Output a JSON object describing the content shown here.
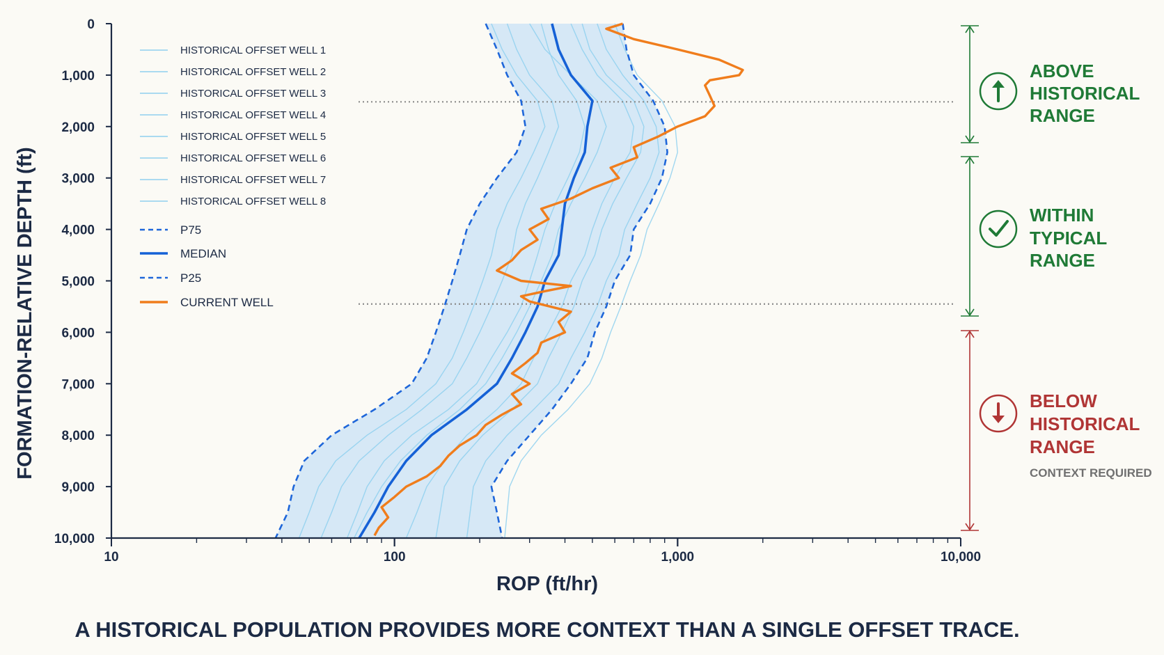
{
  "chart_data": {
    "type": "line",
    "orientation": "depth-vertical",
    "x_scale": "log",
    "xlim": [
      10,
      10000
    ],
    "ylim": [
      0,
      10000
    ],
    "y_inverted": true,
    "xlabel": "ROP (ft/hr)",
    "ylabel": "FORMATION-RELATIVE DEPTH (ft)",
    "x_ticks": [
      10,
      100,
      1000,
      10000
    ],
    "x_tick_labels": [
      "10",
      "100",
      "1,000",
      "10,000"
    ],
    "y_ticks": [
      0,
      1000,
      2000,
      3000,
      4000,
      5000,
      6000,
      7000,
      8000,
      9000,
      10000
    ],
    "y_tick_labels": [
      "0",
      "1,000",
      "2,000",
      "3,000",
      "4,000",
      "5,000",
      "6,000",
      "7,000",
      "8,000",
      "9,000",
      "10,000"
    ],
    "depths": [
      0,
      500,
      1000,
      1500,
      2000,
      2500,
      3000,
      3500,
      4000,
      4500,
      5000,
      5500,
      6000,
      6500,
      7000,
      7500,
      8000,
      8500,
      9000,
      9500,
      10000
    ],
    "p75": [
      640,
      660,
      700,
      820,
      900,
      920,
      880,
      800,
      700,
      680,
      600,
      560,
      510,
      480,
      420,
      360,
      300,
      250,
      220,
      230,
      240
    ],
    "median": [
      360,
      380,
      420,
      500,
      480,
      470,
      430,
      400,
      390,
      380,
      340,
      320,
      290,
      260,
      230,
      180,
      135,
      110,
      95,
      85,
      75
    ],
    "p25": [
      210,
      230,
      250,
      280,
      290,
      270,
      230,
      200,
      180,
      170,
      160,
      150,
      140,
      130,
      115,
      85,
      60,
      48,
      44,
      42,
      38
    ],
    "historical_wells": [
      {
        "name": "HISTORICAL OFFSET WELL 1",
        "values": [
          300,
          340,
          420,
          520,
          560,
          520,
          470,
          420,
          380,
          360,
          330,
          300,
          270,
          240,
          210,
          170,
          130,
          105,
          90,
          80,
          72
        ]
      },
      {
        "name": "HISTORICAL OFFSET WELL 2",
        "values": [
          420,
          460,
          520,
          640,
          700,
          680,
          600,
          540,
          500,
          470,
          420,
          390,
          350,
          310,
          280,
          230,
          180,
          150,
          130,
          120,
          110
        ]
      },
      {
        "name": "HISTORICAL OFFSET WELL 3",
        "values": [
          250,
          270,
          300,
          360,
          380,
          350,
          320,
          290,
          270,
          260,
          240,
          220,
          200,
          180,
          160,
          125,
          95,
          75,
          65,
          60,
          55
        ]
      },
      {
        "name": "HISTORICAL OFFSET WELL 4",
        "values": [
          520,
          560,
          640,
          760,
          840,
          860,
          800,
          720,
          650,
          620,
          560,
          520,
          470,
          420,
          380,
          310,
          250,
          210,
          190,
          185,
          180
        ]
      },
      {
        "name": "HISTORICAL OFFSET WELL 5",
        "values": [
          330,
          350,
          380,
          440,
          470,
          450,
          410,
          370,
          340,
          320,
          300,
          280,
          250,
          220,
          195,
          155,
          115,
          92,
          80,
          74,
          68
        ]
      },
      {
        "name": "HISTORICAL OFFSET WELL 6",
        "values": [
          600,
          650,
          720,
          880,
          980,
          1000,
          940,
          860,
          780,
          740,
          680,
          630,
          580,
          540,
          490,
          410,
          330,
          280,
          255,
          250,
          245
        ]
      },
      {
        "name": "HISTORICAL OFFSET WELL 7",
        "values": [
          220,
          240,
          270,
          320,
          340,
          310,
          280,
          250,
          230,
          220,
          205,
          190,
          175,
          160,
          140,
          110,
          80,
          62,
          54,
          50,
          46
        ]
      },
      {
        "name": "HISTORICAL OFFSET WELL 8",
        "values": [
          460,
          490,
          560,
          700,
          760,
          740,
          660,
          590,
          540,
          510,
          460,
          430,
          390,
          350,
          320,
          260,
          205,
          170,
          150,
          145,
          140
        ]
      }
    ],
    "current_well": {
      "name": "CURRENT WELL",
      "depths": [
        0,
        100,
        300,
        500,
        700,
        900,
        1000,
        1100,
        1200,
        1400,
        1600,
        1800,
        2000,
        2200,
        2400,
        2600,
        2800,
        3000,
        3200,
        3400,
        3600,
        3800,
        4000,
        4200,
        4400,
        4600,
        4800,
        5000,
        5100,
        5200,
        5300,
        5400,
        5600,
        5800,
        6000,
        6200,
        6400,
        6600,
        6800,
        7000,
        7200,
        7400,
        7600,
        7800,
        8000,
        8200,
        8400,
        8600,
        8800,
        9000,
        9200,
        9400,
        9600,
        9800,
        9950
      ],
      "values": [
        640,
        560,
        700,
        1000,
        1400,
        1700,
        1650,
        1300,
        1250,
        1300,
        1350,
        1250,
        1000,
        850,
        700,
        720,
        580,
        620,
        500,
        420,
        330,
        350,
        300,
        320,
        280,
        260,
        230,
        280,
        420,
        340,
        280,
        300,
        420,
        380,
        400,
        330,
        320,
        290,
        260,
        300,
        260,
        280,
        240,
        210,
        195,
        170,
        155,
        145,
        130,
        110,
        100,
        90,
        95,
        88,
        85
      ]
    },
    "legend": {
      "placement": "top-left",
      "p75_label": "P75",
      "median_label": "MEDIAN",
      "p25_label": "P25",
      "current_label": "CURRENT WELL"
    },
    "thresholds_depth": [
      1520,
      5450
    ],
    "grid": false,
    "colors": {
      "historical": "#8fd0ef",
      "band": "#c9e2f6",
      "percentile": "#1e66d9",
      "median": "#1561d6",
      "current": "#f07d1c",
      "above": "#1f7a36",
      "within": "#1f7a36",
      "below": "#b03535",
      "threshold": "#8a8a8a"
    }
  },
  "zones": {
    "above": {
      "line1": "ABOVE",
      "line2": "HISTORICAL",
      "line3": "RANGE",
      "icon": "arrow-up-icon"
    },
    "within": {
      "line1": "WITHIN",
      "line2": "TYPICAL",
      "line3": "RANGE",
      "icon": "checkmark-icon"
    },
    "below": {
      "line1": "BELOW",
      "line2": "HISTORICAL",
      "line3": "RANGE",
      "note": "CONTEXT REQUIRED",
      "icon": "arrow-down-icon"
    }
  },
  "caption": "A HISTORICAL POPULATION PROVIDES MORE CONTEXT THAN A SINGLE OFFSET TRACE."
}
